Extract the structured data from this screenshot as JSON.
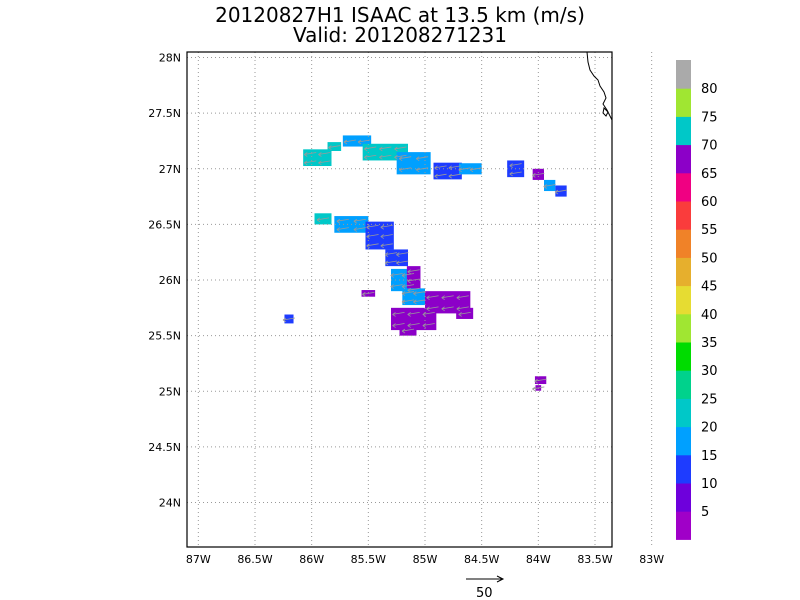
{
  "title": {
    "line1": "20120827H1 ISAAC at 13.5 km (m/s)",
    "line2": "Valid: 201208271231"
  },
  "map": {
    "lat_labels": [
      "28N",
      "27.5N",
      "27N",
      "26.5N",
      "26N",
      "25.5N",
      "25N",
      "24.5N",
      "24N"
    ],
    "lat_values": [
      28,
      27.5,
      27,
      26.5,
      26,
      25.5,
      25,
      24.5,
      24
    ],
    "lon_labels": [
      "87W",
      "86.5W",
      "86W",
      "85.5W",
      "85W",
      "84.5W",
      "84W",
      "83.5W",
      "83W"
    ],
    "lon_values": [
      -87,
      -86.5,
      -86,
      -85.5,
      -85,
      -84.5,
      -84,
      -83.5,
      -83
    ],
    "lat_range": [
      23.6,
      28.05
    ],
    "lon_range": [
      -87.1,
      -83.35
    ],
    "grid": true,
    "vector_scale_label": "50"
  },
  "colorbar": {
    "labels": [
      "5",
      "10",
      "15",
      "20",
      "25",
      "30",
      "35",
      "40",
      "45",
      "50",
      "55",
      "60",
      "65",
      "70",
      "75",
      "80"
    ],
    "colors": [
      "#a000c8",
      "#6e00dc",
      "#1e3cff",
      "#00a0ff",
      "#00c8c8",
      "#00d28c",
      "#00dc00",
      "#a0e632",
      "#e6dc32",
      "#e6af2d",
      "#f08228",
      "#fa3c3c",
      "#f00082",
      "#8c00c8",
      "#00c8c8",
      "#a0e632",
      "#aaaaaa"
    ]
  },
  "wind_field": {
    "cell_deg": 0.0625,
    "cells": [
      {
        "lon": -85.95,
        "lat": 27.1,
        "w": 0.25,
        "h": 0.15,
        "c": 4
      },
      {
        "lon": -85.8,
        "lat": 27.2,
        "w": 0.12,
        "h": 0.08,
        "c": 4
      },
      {
        "lon": -85.6,
        "lat": 27.25,
        "w": 0.25,
        "h": 0.1,
        "c": 3
      },
      {
        "lon": -85.35,
        "lat": 27.15,
        "w": 0.4,
        "h": 0.15,
        "c": 4
      },
      {
        "lon": -85.1,
        "lat": 27.05,
        "w": 0.3,
        "h": 0.2,
        "c": 3
      },
      {
        "lon": -84.8,
        "lat": 26.98,
        "w": 0.25,
        "h": 0.15,
        "c": 2
      },
      {
        "lon": -84.6,
        "lat": 27.0,
        "w": 0.2,
        "h": 0.1,
        "c": 3
      },
      {
        "lon": -84.2,
        "lat": 27.0,
        "w": 0.15,
        "h": 0.15,
        "c": 2
      },
      {
        "lon": -84.0,
        "lat": 26.95,
        "w": 0.1,
        "h": 0.1,
        "c": 13
      },
      {
        "lon": -83.9,
        "lat": 26.85,
        "w": 0.1,
        "h": 0.1,
        "c": 3
      },
      {
        "lon": -83.8,
        "lat": 26.8,
        "w": 0.1,
        "h": 0.1,
        "c": 2
      },
      {
        "lon": -85.9,
        "lat": 26.55,
        "w": 0.15,
        "h": 0.1,
        "c": 4
      },
      {
        "lon": -85.65,
        "lat": 26.5,
        "w": 0.3,
        "h": 0.15,
        "c": 3
      },
      {
        "lon": -85.4,
        "lat": 26.4,
        "w": 0.25,
        "h": 0.25,
        "c": 2
      },
      {
        "lon": -85.25,
        "lat": 26.2,
        "w": 0.2,
        "h": 0.15,
        "c": 2
      },
      {
        "lon": -85.2,
        "lat": 26.0,
        "w": 0.2,
        "h": 0.2,
        "c": 3
      },
      {
        "lon": -85.1,
        "lat": 26.0,
        "w": 0.12,
        "h": 0.25,
        "c": 13
      },
      {
        "lon": -85.1,
        "lat": 25.85,
        "w": 0.2,
        "h": 0.15,
        "c": 3
      },
      {
        "lon": -84.8,
        "lat": 25.8,
        "w": 0.4,
        "h": 0.2,
        "c": 13
      },
      {
        "lon": -85.1,
        "lat": 25.65,
        "w": 0.4,
        "h": 0.2,
        "c": 13
      },
      {
        "lon": -85.15,
        "lat": 25.55,
        "w": 0.15,
        "h": 0.1,
        "c": 13
      },
      {
        "lon": -84.65,
        "lat": 25.7,
        "w": 0.15,
        "h": 0.1,
        "c": 13
      },
      {
        "lon": -85.5,
        "lat": 25.88,
        "w": 0.12,
        "h": 0.06,
        "c": 13
      },
      {
        "lon": -86.2,
        "lat": 25.65,
        "w": 0.08,
        "h": 0.08,
        "c": 2
      },
      {
        "lon": -83.98,
        "lat": 25.1,
        "w": 0.1,
        "h": 0.07,
        "c": 13
      },
      {
        "lon": -84.0,
        "lat": 25.03,
        "w": 0.05,
        "h": 0.05,
        "c": 13
      }
    ]
  }
}
